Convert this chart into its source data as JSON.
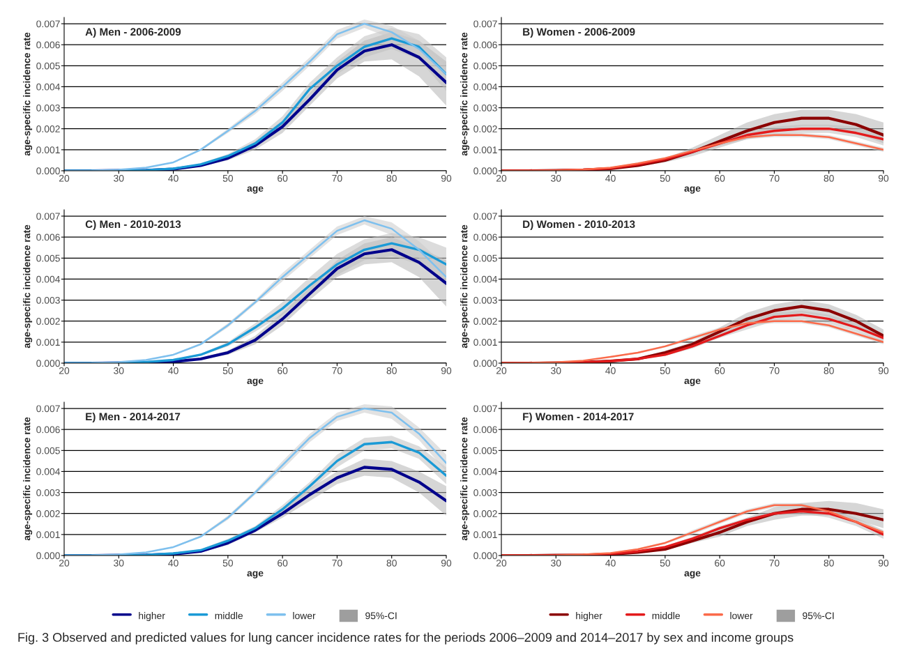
{
  "chart_data": [
    {
      "type": "line",
      "title": "A) Men - 2006-2009",
      "xlabel": "age",
      "ylabel": "age-specific incidence rate",
      "x": [
        20,
        25,
        30,
        35,
        40,
        45,
        50,
        55,
        60,
        65,
        70,
        75,
        80,
        85,
        90
      ],
      "xlim": [
        20,
        90
      ],
      "xticks": [
        20,
        30,
        40,
        50,
        60,
        70,
        80,
        90
      ],
      "ylim": [
        0,
        0.0073
      ],
      "yticks": [
        {
          "value": 0,
          "label": "0.000"
        },
        {
          "value": 0.001,
          "label": "0.001"
        },
        {
          "value": 0.002,
          "label": "0.002"
        },
        {
          "value": 0.003,
          "label": "0.003"
        },
        {
          "value": 0.004,
          "label": "0.004"
        },
        {
          "value": 0.005,
          "label": "0.005"
        },
        {
          "value": 0.006,
          "label": "0.006"
        },
        {
          "value": 0.007,
          "label": "0.007"
        }
      ],
      "grid": "y",
      "legend": false,
      "series": [
        {
          "color": "#00008b",
          "values": [
            0,
            0,
            1e-05,
            2e-05,
            8e-05,
            0.00025,
            0.0006,
            0.0012,
            0.0021,
            0.0034,
            0.0048,
            0.0057,
            0.006,
            0.0054,
            0.0042
          ],
          "lower": [
            0,
            0,
            1e-05,
            1e-05,
            6e-05,
            0.0002,
            0.0005,
            0.001,
            0.0018,
            0.0031,
            0.0044,
            0.0052,
            0.0053,
            0.0045,
            0.0031
          ],
          "upper": [
            0,
            0,
            1e-05,
            3e-05,
            0.0001,
            0.0003,
            0.0007,
            0.0014,
            0.0024,
            0.0037,
            0.0052,
            0.0062,
            0.0066,
            0.0062,
            0.0052
          ]
        },
        {
          "color": "#1a9ad6",
          "values": [
            0,
            0,
            1e-05,
            3e-05,
            0.0001,
            0.0003,
            0.0007,
            0.0013,
            0.0023,
            0.0039,
            0.005,
            0.0059,
            0.0063,
            0.0059,
            0.0046
          ],
          "lower": [
            0,
            0,
            1e-05,
            2e-05,
            8e-05,
            0.00025,
            0.0006,
            0.0011,
            0.002,
            0.0036,
            0.0046,
            0.0054,
            0.0058,
            0.0053,
            0.0038
          ],
          "upper": [
            0,
            0,
            1e-05,
            4e-05,
            0.00012,
            0.00035,
            0.0008,
            0.0015,
            0.0026,
            0.0042,
            0.0054,
            0.0064,
            0.0068,
            0.0065,
            0.0054
          ]
        },
        {
          "color": "#7ec0ee",
          "values": [
            0,
            1e-05,
            5e-05,
            0.00015,
            0.0004,
            0.001,
            0.0019,
            0.00285,
            0.004,
            0.0052,
            0.0065,
            0.007,
            0.0066,
            0.0058,
            0.0046
          ],
          "lower": [
            0,
            0,
            4e-05,
            0.00013,
            0.00037,
            0.00095,
            0.0018,
            0.0027,
            0.0038,
            0.005,
            0.0063,
            0.0068,
            0.0063,
            0.0054,
            0.0042
          ],
          "upper": [
            0,
            2e-05,
            6e-05,
            0.00017,
            0.00043,
            0.00105,
            0.002,
            0.003,
            0.0042,
            0.0054,
            0.0067,
            0.0072,
            0.0069,
            0.0062,
            0.005
          ]
        }
      ]
    },
    {
      "type": "line",
      "title": "B) Women - 2006-2009",
      "xlabel": "age",
      "ylabel": "age-specific incidence rate",
      "x": [
        20,
        25,
        30,
        35,
        40,
        45,
        50,
        55,
        60,
        65,
        70,
        75,
        80,
        85,
        90
      ],
      "xlim": [
        20,
        90
      ],
      "xticks": [
        20,
        30,
        40,
        50,
        60,
        70,
        80,
        90
      ],
      "ylim": [
        0,
        0.0073
      ],
      "yticks": [
        {
          "value": 0,
          "label": "0.000"
        },
        {
          "value": 0.001,
          "label": "0.001"
        },
        {
          "value": 0.002,
          "label": "0.002"
        },
        {
          "value": 0.003,
          "label": "0.003"
        },
        {
          "value": 0.004,
          "label": "0.004"
        },
        {
          "value": 0.005,
          "label": "0.005"
        },
        {
          "value": 0.006,
          "label": "0.006"
        },
        {
          "value": 0.007,
          "label": "0.007"
        }
      ],
      "grid": "y",
      "legend": false,
      "series": [
        {
          "color": "#8b0000",
          "values": [
            0,
            0,
            1e-05,
            4e-05,
            0.0001,
            0.00025,
            0.0005,
            0.0009,
            0.0014,
            0.0019,
            0.0023,
            0.0025,
            0.0025,
            0.0022,
            0.0017
          ],
          "lower": [
            0,
            0,
            0,
            3e-05,
            8e-05,
            0.0002,
            0.0004,
            0.0007,
            0.0011,
            0.0015,
            0.0019,
            0.0021,
            0.0021,
            0.0018,
            0.0013
          ],
          "upper": [
            0,
            0,
            2e-05,
            5e-05,
            0.00012,
            0.0003,
            0.0006,
            0.0011,
            0.0017,
            0.0023,
            0.0027,
            0.0029,
            0.0029,
            0.0027,
            0.0023
          ]
        },
        {
          "color": "#e31a1c",
          "values": [
            0,
            0,
            1e-05,
            5e-05,
            0.00012,
            0.0003,
            0.00055,
            0.0009,
            0.0013,
            0.0017,
            0.0019,
            0.002,
            0.002,
            0.0018,
            0.0015
          ],
          "lower": [
            0,
            0,
            1e-05,
            4e-05,
            0.0001,
            0.00026,
            0.0005,
            0.0008,
            0.0012,
            0.0015,
            0.0017,
            0.0018,
            0.0018,
            0.0016,
            0.0012
          ],
          "upper": [
            0,
            0,
            1e-05,
            6e-05,
            0.00014,
            0.00034,
            0.0006,
            0.001,
            0.0014,
            0.0019,
            0.0021,
            0.0022,
            0.0022,
            0.0021,
            0.0018
          ]
        },
        {
          "color": "#fb6a4a",
          "values": [
            0,
            0,
            2e-05,
            6e-05,
            0.00015,
            0.00035,
            0.0006,
            0.00095,
            0.0013,
            0.0016,
            0.0017,
            0.0017,
            0.0016,
            0.0013,
            0.001
          ],
          "lower": [
            0,
            0,
            1e-05,
            5e-05,
            0.00013,
            0.0003,
            0.00055,
            0.0009,
            0.0012,
            0.0015,
            0.0016,
            0.0016,
            0.0015,
            0.0012,
            0.0009
          ],
          "upper": [
            0,
            0,
            3e-05,
            7e-05,
            0.00017,
            0.0004,
            0.00065,
            0.001,
            0.0014,
            0.0017,
            0.0018,
            0.0018,
            0.0017,
            0.0014,
            0.0011
          ]
        }
      ]
    },
    {
      "type": "line",
      "title": "C) Men - 2010-2013",
      "xlabel": "age",
      "ylabel": "age-specific incidence rate",
      "x": [
        20,
        25,
        30,
        35,
        40,
        45,
        50,
        55,
        60,
        65,
        70,
        75,
        80,
        85,
        90
      ],
      "xlim": [
        20,
        90
      ],
      "xticks": [
        20,
        30,
        40,
        50,
        60,
        70,
        80,
        90
      ],
      "ylim": [
        0,
        0.0073
      ],
      "yticks": [
        {
          "value": 0,
          "label": "0.000"
        },
        {
          "value": 0.001,
          "label": "0.001"
        },
        {
          "value": 0.002,
          "label": "0.002"
        },
        {
          "value": 0.003,
          "label": "0.003"
        },
        {
          "value": 0.004,
          "label": "0.004"
        },
        {
          "value": 0.005,
          "label": "0.005"
        },
        {
          "value": 0.006,
          "label": "0.006"
        },
        {
          "value": 0.007,
          "label": "0.007"
        }
      ],
      "grid": "y",
      "legend": false,
      "series": [
        {
          "color": "#00008b",
          "values": [
            0,
            0,
            1e-05,
            2e-05,
            7e-05,
            0.0002,
            0.0005,
            0.0011,
            0.0021,
            0.0033,
            0.0045,
            0.0052,
            0.0054,
            0.0048,
            0.0038
          ],
          "lower": [
            0,
            0,
            0,
            1e-05,
            5e-05,
            0.00016,
            0.0004,
            0.0009,
            0.0018,
            0.003,
            0.0041,
            0.0047,
            0.0048,
            0.0041,
            0.0027
          ],
          "upper": [
            0,
            0,
            1e-05,
            3e-05,
            9e-05,
            0.00024,
            0.0006,
            0.0013,
            0.0024,
            0.0036,
            0.0049,
            0.0057,
            0.006,
            0.0055,
            0.0049
          ]
        },
        {
          "color": "#1a9ad6",
          "values": [
            0,
            0,
            1e-05,
            5e-05,
            0.00015,
            0.0004,
            0.0009,
            0.0017,
            0.0026,
            0.0037,
            0.0047,
            0.0054,
            0.0057,
            0.0054,
            0.0047
          ],
          "lower": [
            0,
            0,
            1e-05,
            4e-05,
            0.00012,
            0.00035,
            0.0008,
            0.0015,
            0.0023,
            0.0033,
            0.0042,
            0.0049,
            0.0051,
            0.0047,
            0.0039
          ],
          "upper": [
            0,
            0,
            1e-05,
            6e-05,
            0.00018,
            0.00045,
            0.001,
            0.0019,
            0.0029,
            0.0041,
            0.0052,
            0.0059,
            0.0062,
            0.006,
            0.0055
          ]
        },
        {
          "color": "#7ec0ee",
          "values": [
            0,
            1e-05,
            5e-05,
            0.00015,
            0.0004,
            0.0009,
            0.0018,
            0.0029,
            0.0041,
            0.0052,
            0.0063,
            0.0068,
            0.0064,
            0.0054,
            0.0041
          ],
          "lower": [
            0,
            0,
            4e-05,
            0.00013,
            0.00037,
            0.00085,
            0.0017,
            0.0028,
            0.0039,
            0.005,
            0.0061,
            0.0066,
            0.0061,
            0.005,
            0.0036
          ],
          "upper": [
            0,
            2e-05,
            6e-05,
            0.00017,
            0.00043,
            0.00095,
            0.0019,
            0.003,
            0.0043,
            0.0054,
            0.0065,
            0.007,
            0.0067,
            0.0058,
            0.0046
          ]
        }
      ]
    },
    {
      "type": "line",
      "title": "D) Women - 2010-2013",
      "xlabel": "age",
      "ylabel": "age-specific incidence rate",
      "x": [
        20,
        25,
        30,
        35,
        40,
        45,
        50,
        55,
        60,
        65,
        70,
        75,
        80,
        85,
        90
      ],
      "xlim": [
        20,
        90
      ],
      "xticks": [
        20,
        30,
        40,
        50,
        60,
        70,
        80,
        90
      ],
      "ylim": [
        0,
        0.0073
      ],
      "yticks": [
        {
          "value": 0,
          "label": "0.000"
        },
        {
          "value": 0.001,
          "label": "0.001"
        },
        {
          "value": 0.002,
          "label": "0.002"
        },
        {
          "value": 0.003,
          "label": "0.003"
        },
        {
          "value": 0.004,
          "label": "0.004"
        },
        {
          "value": 0.005,
          "label": "0.005"
        },
        {
          "value": 0.006,
          "label": "0.006"
        },
        {
          "value": 0.007,
          "label": "0.007"
        }
      ],
      "grid": "y",
      "legend": false,
      "series": [
        {
          "color": "#8b0000",
          "values": [
            0,
            0,
            1e-05,
            4e-05,
            0.0001,
            0.0002,
            0.0005,
            0.0009,
            0.0015,
            0.0021,
            0.0025,
            0.0027,
            0.0025,
            0.002,
            0.0013
          ],
          "lower": [
            0,
            0,
            0,
            3e-05,
            8e-05,
            0.00016,
            0.0004,
            0.0008,
            0.0013,
            0.0018,
            0.0022,
            0.0024,
            0.0022,
            0.0017,
            0.0011
          ],
          "upper": [
            0,
            0,
            2e-05,
            5e-05,
            0.00012,
            0.00024,
            0.0006,
            0.001,
            0.0017,
            0.0024,
            0.0028,
            0.003,
            0.0028,
            0.0023,
            0.0016
          ]
        },
        {
          "color": "#e31a1c",
          "values": [
            0,
            0,
            1e-05,
            4e-05,
            0.0001,
            0.0002,
            0.0004,
            0.0008,
            0.0013,
            0.0018,
            0.0022,
            0.0023,
            0.0021,
            0.0017,
            0.0012
          ],
          "lower": [
            0,
            0,
            1e-05,
            3e-05,
            8e-05,
            0.00017,
            0.00035,
            0.0007,
            0.0012,
            0.0016,
            0.002,
            0.0021,
            0.0019,
            0.0015,
            0.001
          ],
          "upper": [
            0,
            0,
            1e-05,
            5e-05,
            0.00012,
            0.00023,
            0.00045,
            0.0009,
            0.0014,
            0.002,
            0.0024,
            0.0025,
            0.0023,
            0.0019,
            0.0014
          ]
        },
        {
          "color": "#fb6a4a",
          "values": [
            0,
            1e-05,
            4e-05,
            0.00012,
            0.0003,
            0.0005,
            0.0008,
            0.0012,
            0.0016,
            0.0019,
            0.002,
            0.002,
            0.0018,
            0.0014,
            0.001
          ],
          "lower": [
            0,
            0,
            3e-05,
            0.0001,
            0.00027,
            0.00046,
            0.00075,
            0.0011,
            0.0015,
            0.0018,
            0.0019,
            0.0019,
            0.0017,
            0.0013,
            0.0009
          ],
          "upper": [
            0,
            2e-05,
            5e-05,
            0.00014,
            0.00033,
            0.00054,
            0.00085,
            0.0013,
            0.0017,
            0.002,
            0.0021,
            0.0021,
            0.0019,
            0.0015,
            0.0011
          ]
        }
      ]
    },
    {
      "type": "line",
      "title": "E) Men - 2014-2017",
      "xlabel": "age",
      "ylabel": "age-specific incidence rate",
      "x": [
        20,
        25,
        30,
        35,
        40,
        45,
        50,
        55,
        60,
        65,
        70,
        75,
        80,
        85,
        90
      ],
      "xlim": [
        20,
        90
      ],
      "xticks": [
        20,
        30,
        40,
        50,
        60,
        70,
        80,
        90
      ],
      "ylim": [
        0,
        0.0073
      ],
      "yticks": [
        {
          "value": 0,
          "label": "0.000"
        },
        {
          "value": 0.001,
          "label": "0.001"
        },
        {
          "value": 0.002,
          "label": "0.002"
        },
        {
          "value": 0.003,
          "label": "0.003"
        },
        {
          "value": 0.004,
          "label": "0.004"
        },
        {
          "value": 0.005,
          "label": "0.005"
        },
        {
          "value": 0.006,
          "label": "0.006"
        },
        {
          "value": 0.007,
          "label": "0.007"
        }
      ],
      "grid": "y",
      "legend": "bottom",
      "annotations": [
        "95%-CI",
        "Fig. 3 Observed and predicted values for lung cancer incidence rates for the periods 2006–2009 and 2014–2017 by sex and income groups"
      ],
      "series": [
        {
          "name": "higher",
          "color": "#00008b",
          "values": [
            0,
            0,
            1e-05,
            2e-05,
            7e-05,
            0.0002,
            0.0006,
            0.0012,
            0.002,
            0.0029,
            0.0037,
            0.0042,
            0.0041,
            0.0035,
            0.0026
          ],
          "lower": [
            0,
            0,
            0,
            1e-05,
            5e-05,
            0.00016,
            0.0005,
            0.0011,
            0.0018,
            0.0026,
            0.0034,
            0.0038,
            0.0037,
            0.003,
            0.0019
          ],
          "upper": [
            0,
            0,
            1e-05,
            3e-05,
            9e-05,
            0.00024,
            0.0007,
            0.0013,
            0.0022,
            0.0032,
            0.004,
            0.0046,
            0.0045,
            0.004,
            0.0033
          ]
        },
        {
          "name": "middle",
          "color": "#1a9ad6",
          "values": [
            0,
            0,
            1e-05,
            3e-05,
            0.0001,
            0.00025,
            0.0007,
            0.0013,
            0.0022,
            0.0033,
            0.0045,
            0.0053,
            0.0054,
            0.0049,
            0.0038
          ],
          "lower": [
            0,
            0,
            0,
            2e-05,
            8e-05,
            0.0002,
            0.0006,
            0.0012,
            0.002,
            0.0031,
            0.0042,
            0.005,
            0.0051,
            0.0046,
            0.0034
          ],
          "upper": [
            0,
            0,
            1e-05,
            4e-05,
            0.00012,
            0.0003,
            0.0008,
            0.0014,
            0.0024,
            0.0035,
            0.0048,
            0.0056,
            0.0057,
            0.0052,
            0.0042
          ]
        },
        {
          "name": "lower",
          "color": "#7ec0ee",
          "values": [
            0,
            1e-05,
            5e-05,
            0.00015,
            0.0004,
            0.0009,
            0.0018,
            0.003,
            0.0043,
            0.0056,
            0.0066,
            0.007,
            0.0068,
            0.0058,
            0.0044
          ],
          "lower": [
            0,
            0,
            4e-05,
            0.00013,
            0.00037,
            0.00085,
            0.0017,
            0.0029,
            0.0041,
            0.0054,
            0.0064,
            0.0068,
            0.0065,
            0.0055,
            0.004
          ],
          "upper": [
            0,
            2e-05,
            6e-05,
            0.00017,
            0.00043,
            0.00095,
            0.0019,
            0.0031,
            0.0045,
            0.0058,
            0.0068,
            0.0072,
            0.0071,
            0.0061,
            0.0048
          ]
        }
      ]
    },
    {
      "type": "line",
      "title": "F) Women - 2014-2017",
      "xlabel": "age",
      "ylabel": "age-specific incidence rate",
      "x": [
        20,
        25,
        30,
        35,
        40,
        45,
        50,
        55,
        60,
        65,
        70,
        75,
        80,
        85,
        90
      ],
      "xlim": [
        20,
        90
      ],
      "xticks": [
        20,
        30,
        40,
        50,
        60,
        70,
        80,
        90
      ],
      "ylim": [
        0,
        0.0073
      ],
      "yticks": [
        {
          "value": 0,
          "label": "0.000"
        },
        {
          "value": 0.001,
          "label": "0.001"
        },
        {
          "value": 0.002,
          "label": "0.002"
        },
        {
          "value": 0.003,
          "label": "0.003"
        },
        {
          "value": 0.004,
          "label": "0.004"
        },
        {
          "value": 0.005,
          "label": "0.005"
        },
        {
          "value": 0.006,
          "label": "0.006"
        },
        {
          "value": 0.007,
          "label": "0.007"
        }
      ],
      "grid": "y",
      "legend": "bottom",
      "annotations": [
        "95%-CI"
      ],
      "series": [
        {
          "name": "higher",
          "color": "#8b0000",
          "values": [
            0,
            0,
            1e-05,
            2e-05,
            6e-05,
            0.00015,
            0.0003,
            0.0007,
            0.0011,
            0.0016,
            0.002,
            0.0022,
            0.0022,
            0.002,
            0.0017
          ],
          "lower": [
            0,
            0,
            0,
            1e-05,
            4e-05,
            0.00012,
            0.00025,
            0.0006,
            0.0009,
            0.0014,
            0.0017,
            0.0019,
            0.0019,
            0.0017,
            0.0013
          ],
          "upper": [
            0,
            0,
            1e-05,
            3e-05,
            8e-05,
            0.00018,
            0.00035,
            0.0008,
            0.0013,
            0.0018,
            0.0023,
            0.0025,
            0.0026,
            0.0025,
            0.0022
          ]
        },
        {
          "name": "middle",
          "color": "#e31a1c",
          "values": [
            0,
            0,
            1e-05,
            3e-05,
            8e-05,
            0.0002,
            0.0004,
            0.0008,
            0.0013,
            0.0017,
            0.002,
            0.0021,
            0.002,
            0.0016,
            0.001
          ],
          "lower": [
            0,
            0,
            0,
            2e-05,
            6e-05,
            0.00017,
            0.00035,
            0.0007,
            0.0012,
            0.0016,
            0.0019,
            0.002,
            0.0018,
            0.0014,
            0.0008
          ],
          "upper": [
            0,
            0,
            1e-05,
            4e-05,
            0.0001,
            0.00023,
            0.00045,
            0.0009,
            0.0014,
            0.0018,
            0.0021,
            0.0022,
            0.0022,
            0.0018,
            0.0012
          ]
        },
        {
          "name": "lower",
          "color": "#fb6a4a",
          "values": [
            0,
            0,
            1e-05,
            5e-05,
            0.00012,
            0.0003,
            0.0006,
            0.0011,
            0.0016,
            0.0021,
            0.0024,
            0.0024,
            0.0021,
            0.0016,
            0.0011
          ],
          "lower": [
            0,
            0,
            0,
            4e-05,
            0.0001,
            0.00026,
            0.00055,
            0.001,
            0.0015,
            0.002,
            0.0023,
            0.0023,
            0.002,
            0.0015,
            0.001
          ],
          "upper": [
            0,
            0,
            2e-05,
            6e-05,
            0.00014,
            0.00034,
            0.00065,
            0.0012,
            0.0017,
            0.0022,
            0.0025,
            0.0025,
            0.0022,
            0.0017,
            0.0012
          ]
        }
      ]
    }
  ]
}
